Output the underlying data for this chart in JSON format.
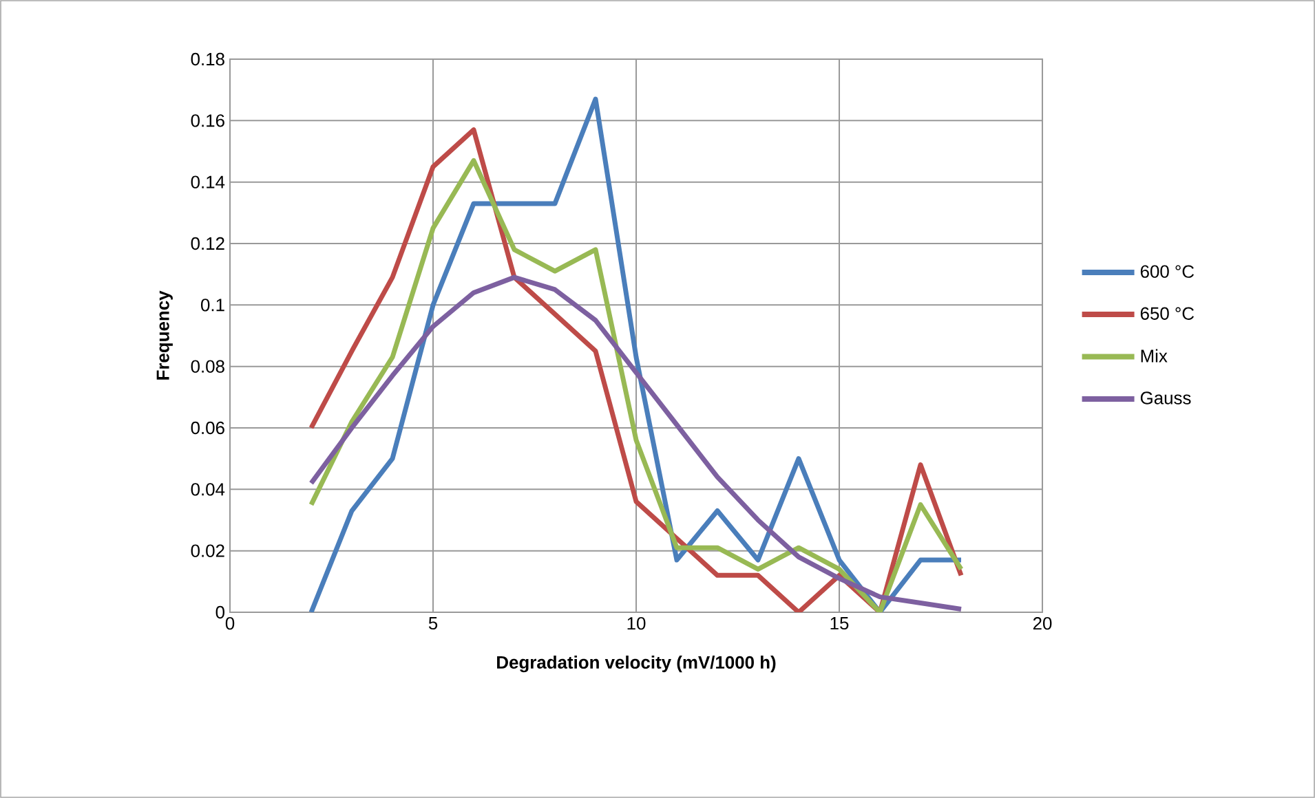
{
  "chart_data": {
    "type": "line",
    "xlabel": "Degradation velocity (mV/1000 h)",
    "ylabel": "Frequency",
    "x": [
      2,
      3,
      4,
      5,
      6,
      7,
      8,
      9,
      10,
      11,
      12,
      13,
      14,
      15,
      16,
      17,
      18
    ],
    "series": [
      {
        "name": "600 °C",
        "color": "#4a7ebb",
        "values": [
          0,
          0.033,
          0.05,
          0.1,
          0.133,
          0.133,
          0.133,
          0.167,
          0.083,
          0.017,
          0.033,
          0.017,
          0.05,
          0.017,
          0,
          0.017,
          0.017
        ]
      },
      {
        "name": "650 °C",
        "color": "#be4b48",
        "values": [
          0.06,
          0.085,
          0.109,
          0.145,
          0.157,
          0.109,
          0.097,
          0.085,
          0.036,
          0.024,
          0.012,
          0.012,
          0,
          0.012,
          0,
          0.048,
          0.012
        ]
      },
      {
        "name": "Mix",
        "color": "#98b954",
        "values": [
          0.035,
          0.062,
          0.083,
          0.125,
          0.147,
          0.118,
          0.111,
          0.118,
          0.056,
          0.021,
          0.021,
          0.014,
          0.021,
          0.014,
          0,
          0.035,
          0.014
        ]
      },
      {
        "name": "Gauss",
        "color": "#7d60a0",
        "values": [
          0.042,
          0.06,
          0.077,
          0.093,
          0.104,
          0.109,
          0.105,
          0.095,
          0.078,
          0.061,
          0.044,
          0.03,
          0.018,
          0.011,
          0.005,
          0.003,
          0.001
        ]
      }
    ],
    "xlim": [
      0,
      20
    ],
    "xticks": [
      0,
      5,
      10,
      15,
      20
    ],
    "ylim": [
      0,
      0.18
    ],
    "yticks": [
      0,
      0.02,
      0.04,
      0.06,
      0.08,
      0.1,
      0.12,
      0.14,
      0.16,
      0.18
    ],
    "grid": true,
    "legend": "right",
    "marker": "none",
    "line_style": "solid"
  }
}
